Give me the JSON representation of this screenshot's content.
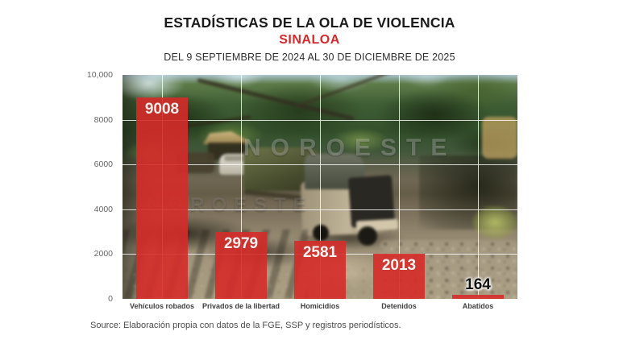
{
  "header": {
    "title": "ESTADÍSTICAS DE LA OLA DE VIOLENCIA",
    "subtitle": "SINALOA",
    "date_range": "DEL 9 SEPTIEMBRE DE 2024 AL 30 DE DICIEMBRE DE 2025"
  },
  "watermark": {
    "text": "NOROESTE"
  },
  "source": "Source: Elaboración propia con datos de la FGE, SSP y registros periodísticos.",
  "colors": {
    "subtitle_red": "#d7282c",
    "bar_red": "#d62c29",
    "grid_white": "#ffffff",
    "bar_value_text": "#ffffff",
    "outside_value_text": "#111111",
    "tick_gray": "#666666"
  },
  "chart_data": {
    "type": "bar",
    "title": "ESTADÍSTICAS DE LA OLA DE VIOLENCIA — SINALOA",
    "categories": [
      "Vehículos robados",
      "Privados de la libertad",
      "Homicidios",
      "Detenidos",
      "Abatidos"
    ],
    "values": [
      9008,
      2979,
      2581,
      2013,
      164
    ],
    "xlabel": "",
    "ylabel": "",
    "ylim": [
      0,
      10000
    ],
    "yticks": [
      {
        "value": 0,
        "label": "0"
      },
      {
        "value": 2000,
        "label": "2000"
      },
      {
        "value": 4000,
        "label": "4000"
      },
      {
        "value": 6000,
        "label": "6000"
      },
      {
        "value": 8000,
        "label": "8000"
      },
      {
        "value": 10000,
        "label": "10,000"
      }
    ],
    "grid": true,
    "legend": false,
    "background": "photo of burned vehicles under trees"
  }
}
